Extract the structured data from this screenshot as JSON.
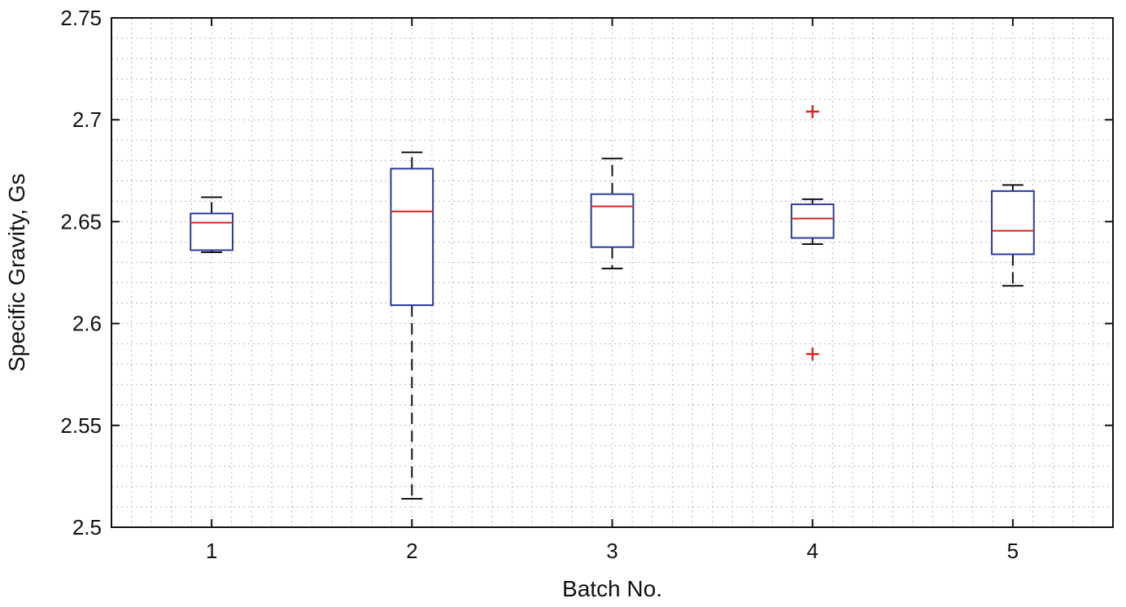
{
  "chart_data": {
    "type": "boxplot",
    "title": "",
    "xlabel": "Batch No.",
    "ylabel": "Specific Gravity, Gs",
    "ylim": [
      2.5,
      2.75
    ],
    "yticks": [
      2.5,
      2.55,
      2.6,
      2.65,
      2.7,
      2.75
    ],
    "ytick_labels": [
      "2.5",
      "2.55",
      "2.6",
      "2.65",
      "2.7",
      "2.75"
    ],
    "xlim": [
      0.5,
      5.5
    ],
    "categories": [
      "1",
      "2",
      "3",
      "4",
      "5"
    ],
    "grid": "dotted major and minor",
    "colors": {
      "box": "#2b3a9b",
      "median": "#d9261c",
      "whisker": "#111111",
      "outlier": "#d9261c",
      "grid": "#b8b8b8"
    },
    "boxes": [
      {
        "category": "1",
        "whisker_low": 2.635,
        "q1": 2.636,
        "median": 2.6495,
        "q3": 2.654,
        "whisker_high": 2.662,
        "outliers": []
      },
      {
        "category": "2",
        "whisker_low": 2.514,
        "q1": 2.609,
        "median": 2.655,
        "q3": 2.676,
        "whisker_high": 2.684,
        "outliers": []
      },
      {
        "category": "3",
        "whisker_low": 2.627,
        "q1": 2.6375,
        "median": 2.6575,
        "q3": 2.6635,
        "whisker_high": 2.681,
        "outliers": []
      },
      {
        "category": "4",
        "whisker_low": 2.639,
        "q1": 2.642,
        "median": 2.6515,
        "q3": 2.6585,
        "whisker_high": 2.661,
        "outliers": [
          2.704,
          2.585
        ]
      },
      {
        "category": "5",
        "whisker_low": 2.6185,
        "q1": 2.634,
        "median": 2.6455,
        "q3": 2.665,
        "whisker_high": 2.668,
        "outliers": []
      }
    ]
  }
}
